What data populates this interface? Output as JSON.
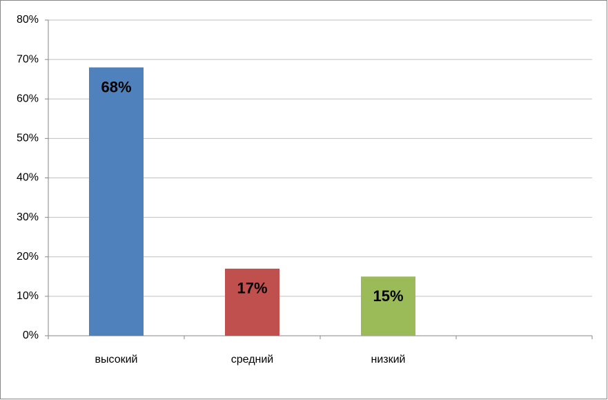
{
  "chart_data": {
    "type": "bar",
    "categories": [
      "высокий",
      "средний",
      "низкий",
      null
    ],
    "values": [
      68,
      17,
      15,
      null
    ],
    "value_labels": [
      "68%",
      "17%",
      "15%",
      null
    ],
    "colors": [
      "#4f81bd",
      "#c0504d",
      "#9bbb59",
      null
    ],
    "ylim": [
      0,
      80
    ],
    "yticks": [
      {
        "value": 0,
        "label": "0%"
      },
      {
        "value": 10,
        "label": "10%"
      },
      {
        "value": 20,
        "label": "20%"
      },
      {
        "value": 30,
        "label": "30%"
      },
      {
        "value": 40,
        "label": "40%"
      },
      {
        "value": 50,
        "label": "50%"
      },
      {
        "value": 60,
        "label": "60%"
      },
      {
        "value": 70,
        "label": "70%"
      },
      {
        "value": 80,
        "label": "80%"
      }
    ],
    "grid": true
  }
}
